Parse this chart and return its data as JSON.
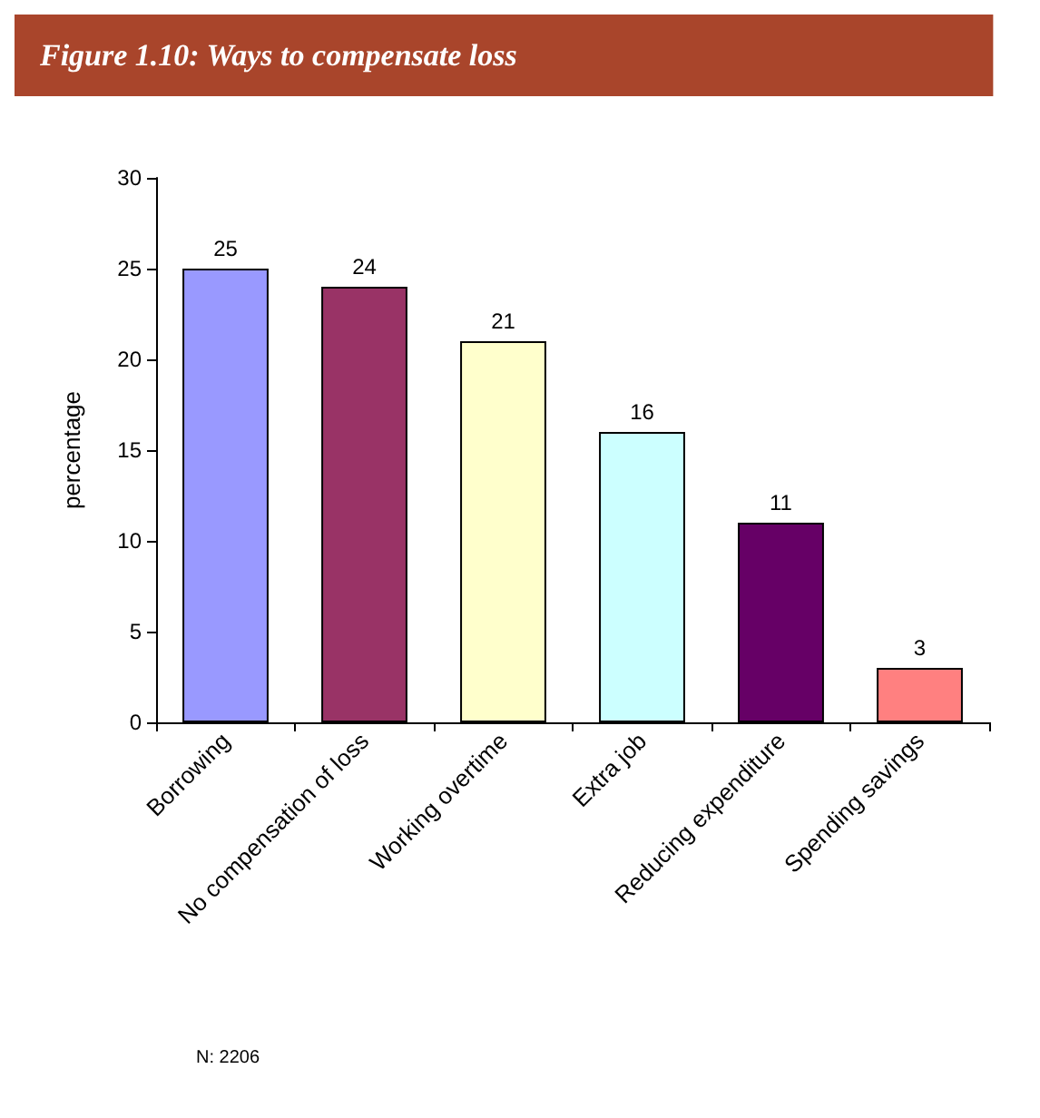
{
  "chart_data": {
    "type": "bar",
    "title": "Figure 1.10: Ways to compensate loss",
    "ylabel": "percentage",
    "categories": [
      "Borrowing",
      "No compensation of loss",
      "Working overtime",
      "Extra job",
      "Reducing expenditure",
      "Spending savings"
    ],
    "values": [
      25,
      24,
      21,
      16,
      11,
      3
    ],
    "colors": [
      "#9999ff",
      "#993366",
      "#ffffcc",
      "#ccffff",
      "#660066",
      "#ff8080"
    ],
    "ylim": [
      0,
      30
    ],
    "yticks": [
      0,
      5,
      10,
      15,
      20,
      25,
      30
    ],
    "grid": false,
    "data_labels": true,
    "annotations": [
      "N: 2206"
    ]
  }
}
